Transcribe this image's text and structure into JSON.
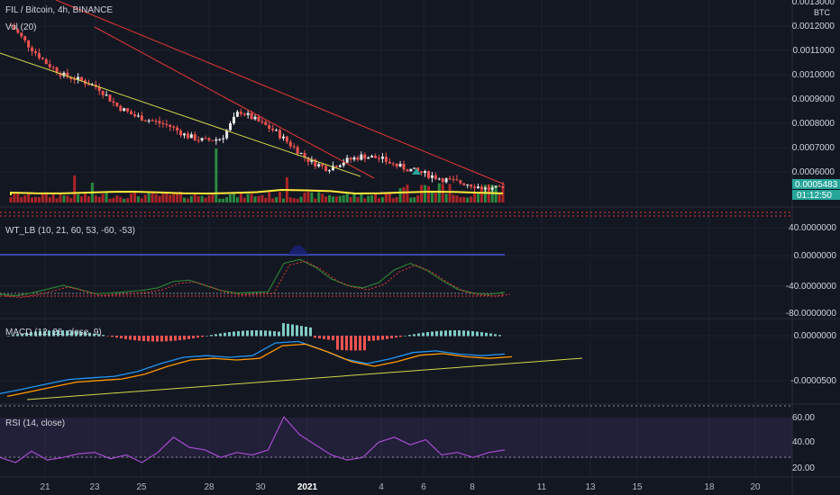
{
  "header": {
    "symbol_line": "FIL / Bitcoin, 4h, BINANCE",
    "volume_label": "Vol (20)"
  },
  "colors": {
    "background": "#131722",
    "up": "#26a69a",
    "down": "#ef5350",
    "candle_up": "#e8e8e8",
    "candle_down": "#ef5350",
    "trendline_red": "#e53935",
    "trendline_yellow": "#d4d64a",
    "rsi": "#a64ccf",
    "macd_line": "#2196f3",
    "signal_line": "#ff9800",
    "price_badge": "#26a69a"
  },
  "price_axis": {
    "currency": "BTC",
    "top_label": "0.0013000",
    "ticks": [
      "0.0012000",
      "0.0011000",
      "0.0010000",
      "0.0009000",
      "0.0008000",
      "0.0007000",
      "0.0006000"
    ],
    "last_price": "0.0005483",
    "countdown": "01:12:50"
  },
  "indicators": {
    "wt": {
      "title": "WT_LB (10, 21, 60, 53, -60, -53)",
      "ticks": [
        "40.0000000",
        "0.0000000",
        "-40.0000000",
        "-80.0000000"
      ]
    },
    "macd": {
      "title": "MACD (12, 26, close, 9)",
      "ticks": [
        "0.0000000",
        "-0.0000500"
      ]
    },
    "rsi": {
      "title": "RSI (14, close)",
      "ticks": [
        "60.00",
        "40.00",
        "20.00"
      ]
    }
  },
  "time_axis": {
    "labels": [
      "21",
      "23",
      "25",
      "28",
      "30",
      "2021",
      "4",
      "6",
      "8",
      "11",
      "13",
      "15",
      "18",
      "20"
    ]
  },
  "chart_data": [
    {
      "type": "candlestick",
      "title": "FIL / Bitcoin, 4h, BINANCE",
      "ylabel": "BTC",
      "ylim": [
        0.00052,
        0.0013
      ],
      "ohlc_close_samples": [
        0.0012,
        0.00112,
        0.00105,
        0.001,
        0.00098,
        0.00095,
        0.00088,
        0.00084,
        0.00082,
        0.0008,
        0.00076,
        0.00074,
        0.00075,
        0.00086,
        0.00082,
        0.00078,
        0.00072,
        0.00066,
        0.00063,
        0.00066,
        0.00068,
        0.00067,
        0.00064,
        0.00062,
        0.0006,
        0.00058,
        0.00057,
        0.00055,
        0.000548
      ],
      "last_value": 0.0005483
    },
    {
      "type": "bar",
      "title": "Vol (20)",
      "series": [
        {
          "name": "Volume"
        }
      ]
    },
    {
      "type": "line",
      "title": "WT_LB (10, 21, 60, 53, -60, -53)",
      "ylim": [
        -90,
        55
      ],
      "series": [
        {
          "values": [
            -58,
            -60,
            -56,
            -50,
            -44,
            -50,
            -57,
            -56,
            -54,
            -52,
            -48,
            -38,
            -36,
            -44,
            -52,
            -56,
            -55,
            -54,
            -10,
            -4,
            -16,
            -34,
            -44,
            -48,
            -40,
            -20,
            -10,
            -20,
            -36,
            -50,
            -56,
            -58,
            -55
          ]
        }
      ]
    },
    {
      "type": "line",
      "title": "MACD (12, 26, close, 9)",
      "ylim": [
        -8e-05,
        2e-05
      ],
      "series": [
        {
          "values": [
            -6.8e-05,
            -6.2e-05,
            -5.6e-05,
            -5e-05,
            -4.8e-05,
            -4.6e-05,
            -4e-05,
            -3e-05,
            -2.2e-05,
            -2e-05,
            -2.2e-05,
            -2e-05,
            -4e-06,
            -2e-06,
            -1.2e-05,
            -2.4e-05,
            -3e-05,
            -2.4e-05,
            -1.6e-05,
            -1.4e-05,
            -1.8e-05,
            -2e-05,
            -1.8e-05
          ]
        }
      ]
    },
    {
      "type": "line",
      "title": "RSI (14, close)",
      "ylim": [
        16,
        70
      ],
      "series": [
        {
          "values": [
            30,
            26,
            35,
            28,
            30,
            33,
            34,
            29,
            32,
            26,
            34,
            46,
            38,
            36,
            30,
            34,
            32,
            36,
            62,
            48,
            40,
            32,
            28,
            30,
            42,
            46,
            40,
            44,
            32,
            34,
            30,
            34,
            36
          ]
        }
      ]
    }
  ]
}
